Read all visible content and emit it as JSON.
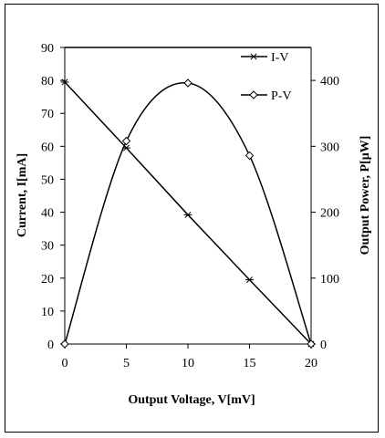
{
  "chart_data": {
    "type": "line",
    "xlabel": "Output Voltage, V[mV]",
    "ylabel_left": "Current, I[mA]",
    "ylabel_right": "Output Power, P[μW]",
    "xlim": [
      0,
      20
    ],
    "ylim_left": [
      0,
      90
    ],
    "ylim_right": [
      0,
      450
    ],
    "x_ticks": [
      0,
      5,
      10,
      15,
      20
    ],
    "y_ticks_left": [
      0,
      10,
      20,
      30,
      40,
      50,
      60,
      70,
      80,
      90
    ],
    "y_ticks_right": [
      0,
      100,
      200,
      300,
      400
    ],
    "legend_position": "top-right",
    "series": [
      {
        "name": "I-V",
        "axis": "left",
        "marker": "asterisk",
        "color": "#000000",
        "x": [
          0,
          5,
          10,
          15,
          20
        ],
        "y": [
          79.5,
          59.5,
          39.2,
          19.5,
          0
        ]
      },
      {
        "name": "P-V",
        "axis": "right",
        "marker": "diamond",
        "color": "#000000",
        "x": [
          0,
          5,
          10,
          15,
          20
        ],
        "y": [
          0,
          308,
          396,
          286,
          0
        ]
      }
    ]
  }
}
